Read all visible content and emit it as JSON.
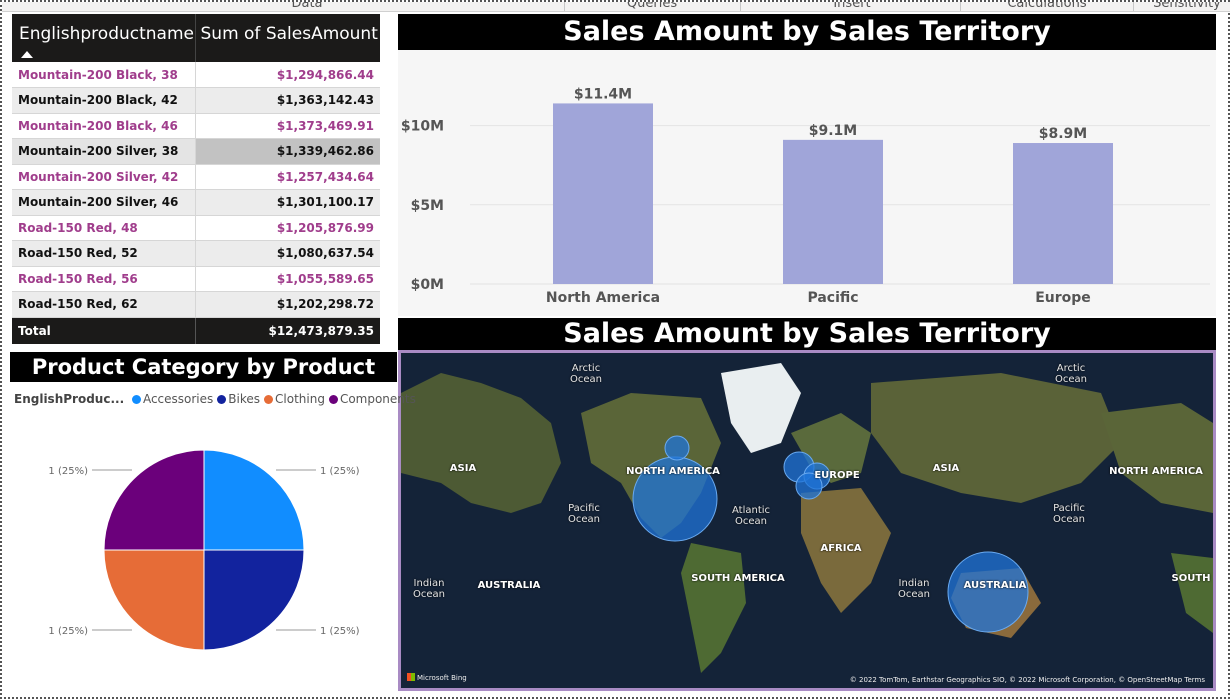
{
  "ribbon": {
    "items": [
      "Data",
      "Queries",
      "Insert",
      "Calculations",
      "Sensitivity"
    ]
  },
  "table": {
    "headers": [
      "Englishproductname",
      "Sum of SalesAmount"
    ],
    "rows": [
      {
        "name": "Mountain-200 Black, 38",
        "amount": "$1,294,866.44"
      },
      {
        "name": "Mountain-200 Black, 42",
        "amount": "$1,363,142.43"
      },
      {
        "name": "Mountain-200 Black, 46",
        "amount": "$1,373,469.91"
      },
      {
        "name": "Mountain-200 Silver, 38",
        "amount": "$1,339,462.86"
      },
      {
        "name": "Mountain-200 Silver, 42",
        "amount": "$1,257,434.64"
      },
      {
        "name": "Mountain-200 Silver, 46",
        "amount": "$1,301,100.17"
      },
      {
        "name": "Road-150 Red, 48",
        "amount": "$1,205,876.99"
      },
      {
        "name": "Road-150 Red, 52",
        "amount": "$1,080,637.54"
      },
      {
        "name": "Road-150 Red, 56",
        "amount": "$1,055,589.65"
      },
      {
        "name": "Road-150 Red, 62",
        "amount": "$1,202,298.72"
      }
    ],
    "total_label": "Total",
    "total_amount": "$12,473,879.35"
  },
  "bar_title": "Sales Amount by Sales Territory",
  "map_title": "Sales Amount by Sales Territory",
  "pie_title": "Product Category by Product Name",
  "pie_legend": {
    "title": "EnglishProduc...",
    "items": [
      {
        "label": "Accessories",
        "color": "#118dff"
      },
      {
        "label": "Bikes",
        "color": "#12239e"
      },
      {
        "label": "Clothing",
        "color": "#e66c37"
      },
      {
        "label": "Components",
        "color": "#6b007b"
      }
    ]
  },
  "chart_data": [
    {
      "type": "bar",
      "title": "Sales Amount by Sales Territory",
      "categories": [
        "North America",
        "Pacific",
        "Europe"
      ],
      "values": [
        11.4,
        9.1,
        8.9
      ],
      "data_labels": [
        "$11.4M",
        "$9.1M",
        "$8.9M"
      ],
      "yticks": [
        "$0M",
        "$5M",
        "$10M"
      ],
      "ytick_values": [
        0,
        5,
        10
      ],
      "ylim": [
        0,
        12.5
      ],
      "color": "#a0a5d9",
      "grid": true
    },
    {
      "type": "pie",
      "title": "Product Category by Product Name",
      "categories": [
        "Accessories",
        "Bikes",
        "Clothing",
        "Components"
      ],
      "values": [
        1,
        1,
        1,
        1
      ],
      "data_labels": [
        "1 (25%)",
        "1 (25%)",
        "1 (25%)",
        "1 (25%)"
      ],
      "colors": [
        "#118dff",
        "#12239e",
        "#e66c37",
        "#6b007b"
      ]
    }
  ],
  "map": {
    "labels": [
      {
        "text": "Arctic\nOcean",
        "kind": "ocean"
      },
      {
        "text": "Arctic\nOcean",
        "kind": "ocean"
      },
      {
        "text": "ASIA",
        "kind": "land"
      },
      {
        "text": "NORTH AMERICA",
        "kind": "land"
      },
      {
        "text": "EUROPE",
        "kind": "land"
      },
      {
        "text": "ASIA",
        "kind": "land"
      },
      {
        "text": "NORTH AMERICA",
        "kind": "land"
      },
      {
        "text": "Pacific\nOcean",
        "kind": "ocean"
      },
      {
        "text": "Atlantic\nOcean",
        "kind": "ocean"
      },
      {
        "text": "Pacific\nOcean",
        "kind": "ocean"
      },
      {
        "text": "AFRICA",
        "kind": "land"
      },
      {
        "text": "Indian\nOcean",
        "kind": "ocean"
      },
      {
        "text": "AUSTRALIA",
        "kind": "land"
      },
      {
        "text": "SOUTH AMERICA",
        "kind": "land"
      },
      {
        "text": "Indian\nOcean",
        "kind": "ocean"
      },
      {
        "text": "AUSTRALIA",
        "kind": "land"
      },
      {
        "text": "SOUTH",
        "kind": "land"
      }
    ],
    "bubble_color": "#1f74d8",
    "logo": "Microsoft Bing",
    "attribution": "© 2022 TomTom, Earthstar Geographics SIO, © 2022 Microsoft Corporation, © OpenStreetMap  Terms"
  }
}
